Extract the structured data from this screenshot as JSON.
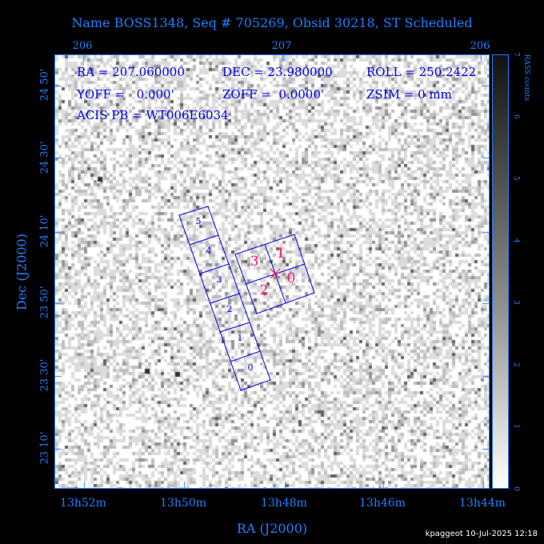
{
  "title": "Name BOSS1348, Seq # 705269, Obsid 30218, ST Scheduled",
  "info": {
    "ra": "RA = 207.060000",
    "dec": "DEC = 23.980000",
    "roll": "ROLL = 250.2422",
    "yoff": "YOFF =   0.000'",
    "zoff": "ZOFF =  0.0000'",
    "zsim": "ZSIM = 0 mm",
    "acis_pb": "ACIS PB = WT006E6034"
  },
  "top_axis": [
    "206",
    "207",
    "206"
  ],
  "bottom_axis": [
    "13h52m",
    "13h50m",
    "13h48m",
    "13h46m",
    "13h44m"
  ],
  "left_axis": [
    "24 50'",
    "24 30'",
    "24 10'",
    "23 50'",
    "23 30'",
    "23 10'"
  ],
  "xlabel": "RA (J2000)",
  "ylabel": "Dec (J2000)",
  "colorbar": {
    "label": "RASS counts",
    "ticks": [
      "0",
      "1",
      "2",
      "3",
      "4",
      "5",
      "6",
      "7"
    ]
  },
  "acis_s_chips": [
    "5",
    "4",
    "3",
    "2",
    "1",
    "0"
  ],
  "acis_i_chips": [
    "3",
    "1",
    "2",
    "0"
  ],
  "colors": {
    "axis": "#1e7fff",
    "chip_outline": "#0000ee",
    "acis_i_label": "#ff1177",
    "aimpoint": "#ff0000"
  },
  "footer": "kpaggeot 10-Jul-2025 12:18"
}
